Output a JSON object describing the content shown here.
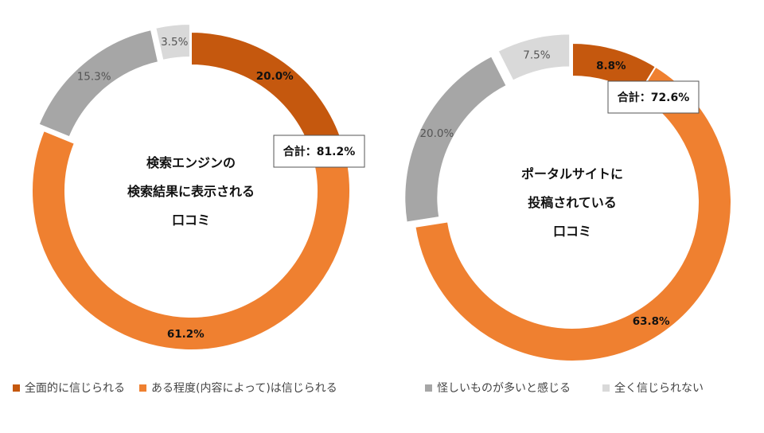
{
  "chart_data": [
    {
      "type": "pie",
      "variant": "donut-exploded",
      "title": "",
      "center_lines": [
        "検索エンジンの",
        "検索結果に表示される",
        "口コミ"
      ],
      "categories": [
        "全面的に信じられる",
        "ある程度(内容によって)は信じられる",
        "怪しいものが多いと感じる",
        "全く信じられない"
      ],
      "values": [
        20.0,
        61.2,
        15.3,
        3.5
      ],
      "labels": [
        "20.0%",
        "61.2%",
        "15.3%",
        "3.5%"
      ],
      "total_label": "合計：81.2%",
      "colors": [
        "#c5580e",
        "#ef8030",
        "#a6a6a6",
        "#d9d9d9"
      ]
    },
    {
      "type": "pie",
      "variant": "donut-exploded",
      "title": "",
      "center_lines": [
        "ポータルサイトに",
        "投稿されている",
        "口コミ"
      ],
      "categories": [
        "全面的に信じられる",
        "ある程度(内容によって)は信じられる",
        "怪しいものが多いと感じる",
        "全く信じられない"
      ],
      "values": [
        8.8,
        63.8,
        20.0,
        7.5
      ],
      "labels": [
        "8.8%",
        "63.8%",
        "20.0%",
        "7.5%"
      ],
      "total_label": "合計：72.6%",
      "colors": [
        "#c5580e",
        "#ef8030",
        "#a6a6a6",
        "#d9d9d9"
      ]
    }
  ],
  "legend": [
    {
      "label": "全面的に信じられる",
      "color": "#c5580e"
    },
    {
      "label": "ある程度(内容によって)は信じられる",
      "color": "#ef8030"
    },
    {
      "label": "怪しいものが多いと感じる",
      "color": "#a6a6a6"
    },
    {
      "label": "全く信じられない",
      "color": "#d9d9d9"
    }
  ]
}
